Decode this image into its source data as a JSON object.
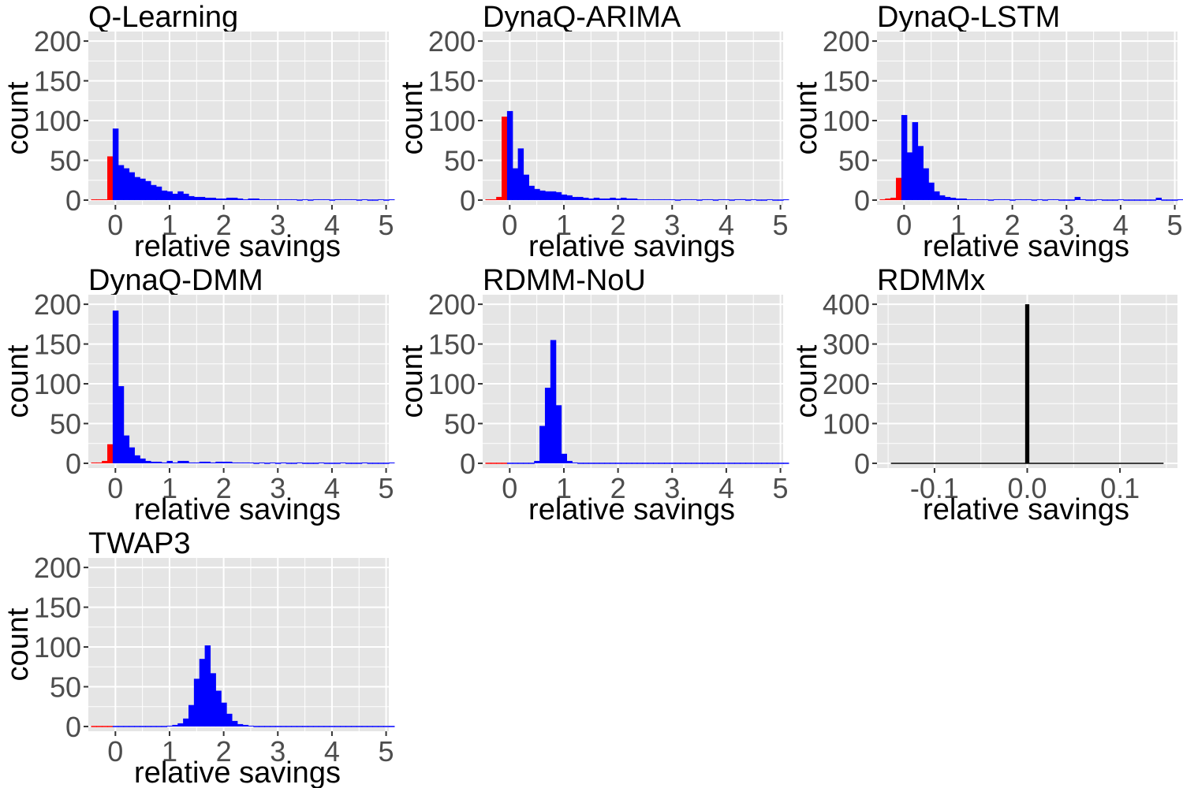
{
  "colors": {
    "panel_bg": "#e5e5e5",
    "grid": "#ffffff",
    "negative": "#ff0000",
    "positive": "#0000ff",
    "neutral": "#000000",
    "tick_text": "#4d4d4d",
    "tick_mark": "#333333"
  },
  "chart_data": [
    {
      "type": "bar",
      "title": "Q-Learning",
      "xlabel": "relative savings",
      "ylabel": "count",
      "xlim": [
        -0.5,
        5.05
      ],
      "ylim": [
        -6,
        212
      ],
      "xticks": [
        0,
        1,
        2,
        3,
        4,
        5
      ],
      "xtick_labels": [
        "0",
        "1",
        "2",
        "3",
        "4",
        "5"
      ],
      "yticks": [
        0,
        50,
        100,
        150,
        200
      ],
      "ytick_labels": [
        "0",
        "50",
        "100",
        "150",
        "200"
      ],
      "bin_start": -0.45,
      "bin_width": 0.1,
      "counts": [
        1,
        1,
        1,
        55,
        90,
        44,
        40,
        35,
        29,
        27,
        24,
        19,
        17,
        12,
        11,
        8,
        11,
        8,
        5,
        4,
        4,
        3,
        3,
        2,
        2,
        3,
        3,
        2,
        1,
        2,
        2,
        1,
        1,
        1,
        1,
        1,
        1,
        1,
        0,
        1,
        0,
        1,
        1,
        1,
        0,
        1,
        1,
        1,
        1,
        0,
        1,
        0,
        0,
        1,
        0,
        1
      ]
    },
    {
      "type": "bar",
      "title": "DynaQ-ARIMA",
      "xlabel": "relative savings",
      "ylabel": "count",
      "xlim": [
        -0.5,
        5.05
      ],
      "ylim": [
        -6,
        212
      ],
      "xticks": [
        0,
        1,
        2,
        3,
        4,
        5
      ],
      "xtick_labels": [
        "0",
        "1",
        "2",
        "3",
        "4",
        "5"
      ],
      "yticks": [
        0,
        50,
        100,
        150,
        200
      ],
      "ytick_labels": [
        "0",
        "50",
        "100",
        "150",
        "200"
      ],
      "bin_start": -0.45,
      "bin_width": 0.1,
      "counts": [
        1,
        1,
        4,
        105,
        112,
        40,
        65,
        32,
        18,
        14,
        12,
        11,
        11,
        10,
        7,
        6,
        4,
        4,
        3,
        2,
        3,
        2,
        2,
        3,
        2,
        3,
        2,
        2,
        1,
        1,
        1,
        1,
        1,
        1,
        1,
        0,
        1,
        1,
        1,
        0,
        1,
        1,
        0,
        1,
        1,
        0,
        1,
        1,
        0,
        1,
        0,
        0,
        1,
        0,
        0,
        1
      ]
    },
    {
      "type": "bar",
      "title": "DynaQ-LSTM",
      "xlabel": "relative savings",
      "ylabel": "count",
      "xlim": [
        -0.5,
        5.05
      ],
      "ylim": [
        -6,
        212
      ],
      "xticks": [
        0,
        1,
        2,
        3,
        4,
        5
      ],
      "xtick_labels": [
        "0",
        "1",
        "2",
        "3",
        "4",
        "5"
      ],
      "yticks": [
        0,
        50,
        100,
        150,
        200
      ],
      "ytick_labels": [
        "0",
        "50",
        "100",
        "150",
        "200"
      ],
      "bin_start": -0.45,
      "bin_width": 0.1,
      "counts": [
        1,
        2,
        3,
        28,
        107,
        60,
        98,
        68,
        40,
        22,
        11,
        6,
        4,
        3,
        2,
        2,
        1,
        1,
        1,
        1,
        0,
        1,
        1,
        1,
        0,
        1,
        1,
        1,
        0,
        1,
        0,
        1,
        1,
        0,
        0,
        0,
        4,
        1,
        0,
        0,
        1,
        0,
        0,
        0,
        1,
        0,
        0,
        0,
        0,
        0,
        0,
        3,
        0,
        0,
        0,
        1
      ]
    },
    {
      "type": "bar",
      "title": "DynaQ-DMM",
      "xlabel": "relative savings",
      "ylabel": "count",
      "xlim": [
        -0.5,
        5.05
      ],
      "ylim": [
        -6,
        212
      ],
      "xticks": [
        0,
        1,
        2,
        3,
        4,
        5
      ],
      "xtick_labels": [
        "0",
        "1",
        "2",
        "3",
        "4",
        "5"
      ],
      "yticks": [
        0,
        50,
        100,
        150,
        200
      ],
      "ytick_labels": [
        "0",
        "50",
        "100",
        "150",
        "200"
      ],
      "bin_start": -0.45,
      "bin_width": 0.1,
      "counts": [
        1,
        1,
        3,
        24,
        192,
        97,
        35,
        20,
        10,
        6,
        3,
        2,
        2,
        1,
        3,
        1,
        3,
        3,
        1,
        1,
        2,
        2,
        1,
        2,
        2,
        2,
        1,
        1,
        1,
        1,
        0,
        1,
        0,
        1,
        0,
        1,
        0,
        0,
        1,
        0,
        0,
        0,
        1,
        0,
        0,
        0,
        1,
        0,
        0,
        0,
        1,
        0,
        0,
        0,
        0,
        1
      ]
    },
    {
      "type": "bar",
      "title": "RDMM-NoU",
      "xlabel": "relative savings",
      "ylabel": "count",
      "xlim": [
        -0.5,
        5.05
      ],
      "ylim": [
        -6,
        212
      ],
      "xticks": [
        0,
        1,
        2,
        3,
        4,
        5
      ],
      "xtick_labels": [
        "0",
        "1",
        "2",
        "3",
        "4",
        "5"
      ],
      "yticks": [
        0,
        50,
        100,
        150,
        200
      ],
      "ytick_labels": [
        "0",
        "50",
        "100",
        "150",
        "200"
      ],
      "bin_start": -0.45,
      "bin_width": 0.1,
      "counts": [
        0,
        0,
        0,
        0,
        0,
        0,
        0,
        0,
        0,
        3,
        47,
        95,
        155,
        73,
        12,
        3,
        1,
        0,
        0,
        0,
        0,
        0,
        0,
        0,
        0,
        0,
        0,
        0,
        0,
        0,
        0,
        0,
        0,
        0,
        0,
        0,
        0,
        0,
        0,
        0,
        0,
        0,
        0,
        0,
        0,
        0,
        0,
        0,
        0,
        0,
        0,
        0,
        0,
        0,
        0,
        0
      ]
    },
    {
      "type": "bar",
      "title": "RDMMx",
      "xlabel": "relative savings",
      "ylabel": "count",
      "xlim": [
        -0.162,
        0.162
      ],
      "ylim": [
        -12,
        424
      ],
      "xticks": [
        -0.1,
        0.0,
        0.1
      ],
      "xtick_labels": [
        "-0.1",
        "0.0",
        "0.1"
      ],
      "yticks": [
        0,
        100,
        200,
        300,
        400
      ],
      "ytick_labels": [
        "0",
        "100",
        "200",
        "300",
        "400"
      ],
      "bar_center": 0.0,
      "bar_width": 0.0045,
      "bar_value": 400,
      "baseline_range": [
        -0.147,
        0.147
      ]
    },
    {
      "type": "bar",
      "title": "TWAP3",
      "xlabel": "relative savings",
      "ylabel": "count",
      "xlim": [
        -0.5,
        5.05
      ],
      "ylim": [
        -6,
        212
      ],
      "xticks": [
        0,
        1,
        2,
        3,
        4,
        5
      ],
      "xtick_labels": [
        "0",
        "1",
        "2",
        "3",
        "4",
        "5"
      ],
      "yticks": [
        0,
        50,
        100,
        150,
        200
      ],
      "ytick_labels": [
        "0",
        "50",
        "100",
        "150",
        "200"
      ],
      "bin_start": -0.45,
      "bin_width": 0.1,
      "counts": [
        0,
        0,
        0,
        0,
        0,
        0,
        0,
        0,
        0,
        0,
        0,
        0,
        0,
        0,
        1,
        2,
        4,
        10,
        27,
        60,
        85,
        102,
        67,
        45,
        30,
        16,
        7,
        3,
        2,
        1,
        0,
        0,
        0,
        0,
        0,
        0,
        0,
        0,
        0,
        0,
        0,
        0,
        0,
        0,
        0,
        0,
        0,
        0,
        0,
        0,
        0,
        0,
        0,
        0,
        0,
        0
      ]
    }
  ]
}
